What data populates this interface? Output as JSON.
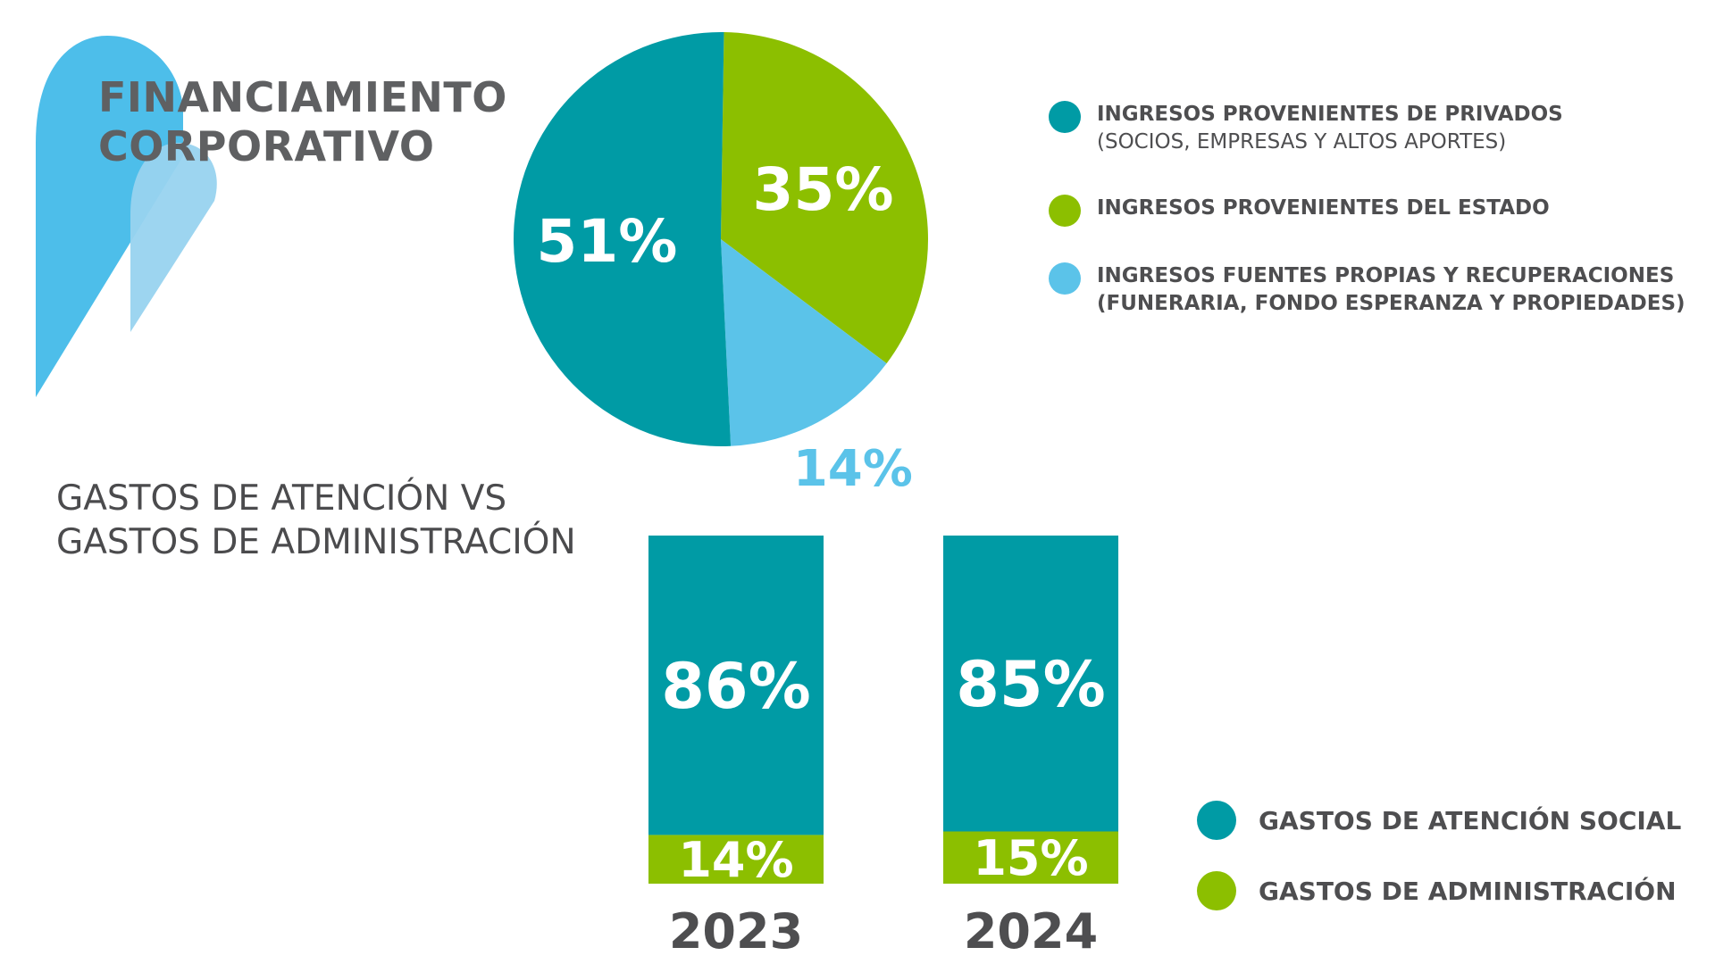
{
  "header": {
    "title_line1": "FINANCIAMIENTO",
    "title_line2": "CORPORATIVO"
  },
  "colors": {
    "teal": "#009ba5",
    "green": "#8cbf00",
    "light_blue": "#5bc3e9",
    "logo_blue": "#4dbeea",
    "logo_light": "#98d3ef",
    "text_gray": "#4e4e50"
  },
  "chart_data": [
    {
      "type": "pie",
      "title": "",
      "slices": [
        {
          "label_line1": "INGRESOS PROVENIENTES DE PRIVADOS",
          "label_line2": "(SOCIOS, EMPRESAS Y ALTOS APORTES)",
          "value": 51,
          "display": "51%",
          "color": "#009ba5"
        },
        {
          "label_line1": "INGRESOS PROVENIENTES DEL ESTADO",
          "label_line2": "",
          "value": 35,
          "display": "35%",
          "color": "#8cbf00"
        },
        {
          "label_line1": "INGRESOS FUENTES PROPIAS  Y RECUPERACIONES",
          "label_line2": "(FUNERARIA, FONDO ESPERANZA Y PROPIEDADES)",
          "value": 14,
          "display": "14%",
          "color": "#5bc3e9"
        }
      ],
      "legend_position": "right"
    },
    {
      "type": "bar",
      "stacked": true,
      "title_line1": "GASTOS DE ATENCIÓN VS",
      "title_line2": "GASTOS DE ADMINISTRACIÓN",
      "categories": [
        "2023",
        "2024"
      ],
      "series": [
        {
          "name": "GASTOS DE ATENCIÓN SOCIAL",
          "values": [
            86,
            85
          ],
          "display": [
            "86%",
            "85%"
          ],
          "color": "#009ba5"
        },
        {
          "name": "GASTOS DE ADMINISTRACIÓN",
          "values": [
            14,
            15
          ],
          "display": [
            "14%",
            "15%"
          ],
          "color": "#8cbf00"
        }
      ],
      "ylim": [
        0,
        100
      ],
      "legend_position": "bottom-right"
    }
  ]
}
